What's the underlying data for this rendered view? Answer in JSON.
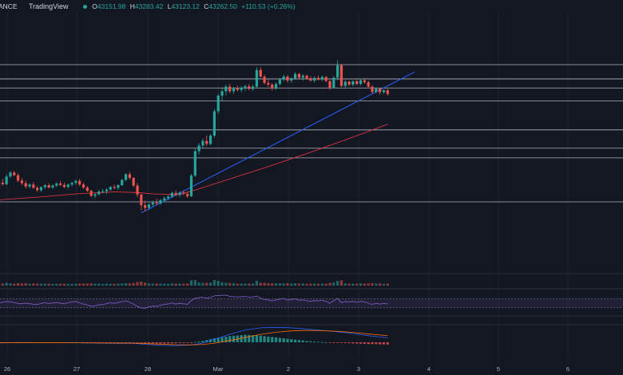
{
  "header": {
    "symbol": "ANCE",
    "brand": "TradingView",
    "ohlc": [
      {
        "label": "O",
        "value": "43151.98"
      },
      {
        "label": "H",
        "value": "43283.42"
      },
      {
        "label": "L",
        "value": "43123.12"
      },
      {
        "label": "C",
        "value": "43262.50"
      }
    ],
    "change": "+110.53 (+0.26%)"
  },
  "chart_data": {
    "type": "line",
    "panes": [
      "price",
      "volume",
      "rsi",
      "macd"
    ],
    "x_ticks": [
      "26",
      "27",
      "28",
      "Mar",
      "2",
      "3",
      "4",
      "5",
      "6"
    ],
    "candles": [
      [
        40060,
        40300,
        39980,
        40240
      ],
      [
        40240,
        40350,
        40150,
        40190
      ],
      [
        40190,
        40480,
        40160,
        40420
      ],
      [
        40420,
        40590,
        40370,
        40540
      ],
      [
        40540,
        40600,
        40430,
        40460
      ],
      [
        40460,
        40520,
        40250,
        40300
      ],
      [
        40300,
        40380,
        40170,
        40220
      ],
      [
        40220,
        40300,
        40060,
        40120
      ],
      [
        40120,
        40220,
        40060,
        40180
      ],
      [
        40180,
        40260,
        40050,
        40080
      ],
      [
        40080,
        40140,
        39950,
        40010
      ],
      [
        40010,
        40130,
        39960,
        40100
      ],
      [
        40100,
        40200,
        40040,
        40160
      ],
      [
        40160,
        40220,
        40060,
        40090
      ],
      [
        40090,
        40180,
        40040,
        40150
      ],
      [
        40150,
        40250,
        40100,
        40210
      ],
      [
        40210,
        40290,
        40130,
        40170
      ],
      [
        40170,
        40240,
        40070,
        40110
      ],
      [
        40110,
        40210,
        40060,
        40180
      ],
      [
        40180,
        40270,
        40120,
        40230
      ],
      [
        40230,
        40330,
        40170,
        40290
      ],
      [
        40290,
        40350,
        40140,
        40180
      ],
      [
        40180,
        40240,
        40050,
        40090
      ],
      [
        40090,
        40140,
        39960,
        39990
      ],
      [
        39990,
        40030,
        39800,
        39840
      ],
      [
        39840,
        39930,
        39770,
        39890
      ],
      [
        39890,
        40020,
        39840,
        39970
      ],
      [
        39970,
        40050,
        39920,
        39980
      ],
      [
        39980,
        40070,
        39900,
        40030
      ],
      [
        40030,
        40130,
        39990,
        40110
      ],
      [
        40110,
        40180,
        40030,
        40080
      ],
      [
        40080,
        40190,
        40020,
        40160
      ],
      [
        40160,
        40350,
        40140,
        40320
      ],
      [
        40320,
        40520,
        40280,
        40490
      ],
      [
        40490,
        40560,
        40330,
        40380
      ],
      [
        40380,
        40400,
        40100,
        40150
      ],
      [
        40150,
        40230,
        39800,
        39880
      ],
      [
        39880,
        39900,
        39410,
        39560
      ],
      [
        39560,
        39700,
        39370,
        39480
      ],
      [
        39480,
        39630,
        39420,
        39580
      ],
      [
        39580,
        39700,
        39520,
        39640
      ],
      [
        39640,
        39760,
        39560,
        39610
      ],
      [
        39610,
        39750,
        39580,
        39710
      ],
      [
        39710,
        39820,
        39650,
        39770
      ],
      [
        39770,
        39860,
        39710,
        39820
      ],
      [
        39820,
        39970,
        39780,
        39930
      ],
      [
        39930,
        40010,
        39820,
        39870
      ],
      [
        39870,
        39980,
        39800,
        39940
      ],
      [
        39940,
        40010,
        39860,
        39900
      ],
      [
        39900,
        39980,
        39780,
        39830
      ],
      [
        39830,
        40500,
        39810,
        40450
      ],
      [
        40450,
        41250,
        40400,
        41180
      ],
      [
        41180,
        41420,
        41080,
        41350
      ],
      [
        41350,
        41560,
        41280,
        41490
      ],
      [
        41490,
        41650,
        41330,
        41400
      ],
      [
        41400,
        41700,
        41360,
        41650
      ],
      [
        41650,
        42450,
        41580,
        42380
      ],
      [
        42380,
        42900,
        42300,
        42850
      ],
      [
        42850,
        43100,
        42700,
        42980
      ],
      [
        42980,
        43180,
        42860,
        43120
      ],
      [
        43120,
        43200,
        42920,
        42980
      ],
      [
        42980,
        43110,
        42900,
        43060
      ],
      [
        43060,
        43150,
        42980,
        43020
      ],
      [
        43020,
        43130,
        42950,
        43090
      ],
      [
        43090,
        43180,
        42990,
        43130
      ],
      [
        43130,
        43200,
        43010,
        43050
      ],
      [
        43050,
        43180,
        42990,
        43120
      ],
      [
        43120,
        43700,
        43080,
        43620
      ],
      [
        43620,
        43700,
        43380,
        43420
      ],
      [
        43420,
        43480,
        43180,
        43230
      ],
      [
        43230,
        43330,
        43110,
        43180
      ],
      [
        43180,
        43230,
        43000,
        43060
      ],
      [
        43060,
        43250,
        43020,
        43200
      ],
      [
        43200,
        43380,
        43150,
        43330
      ],
      [
        43330,
        43480,
        43280,
        43420
      ],
      [
        43420,
        43470,
        43240,
        43300
      ],
      [
        43300,
        43410,
        43230,
        43370
      ],
      [
        43370,
        43560,
        43320,
        43500
      ],
      [
        43500,
        43530,
        43330,
        43390
      ],
      [
        43390,
        43500,
        43300,
        43450
      ],
      [
        43450,
        43480,
        43330,
        43370
      ],
      [
        43370,
        43440,
        43270,
        43300
      ],
      [
        43300,
        43430,
        43240,
        43380
      ],
      [
        43380,
        43460,
        43300,
        43330
      ],
      [
        43330,
        43450,
        43280,
        43410
      ],
      [
        43410,
        43430,
        43250,
        43290
      ],
      [
        43290,
        43310,
        43020,
        43080
      ],
      [
        43080,
        43430,
        43060,
        43390
      ],
      [
        43390,
        43910,
        43300,
        43760
      ],
      [
        43760,
        43800,
        43110,
        43140
      ],
      [
        43140,
        43320,
        43090,
        43270
      ],
      [
        43270,
        43300,
        43130,
        43180
      ],
      [
        43180,
        43310,
        43130,
        43280
      ],
      [
        43280,
        43330,
        43160,
        43200
      ],
      [
        43200,
        43360,
        43150,
        43310
      ],
      [
        43310,
        43380,
        43200,
        43250
      ],
      [
        43250,
        43300,
        43080,
        43120
      ],
      [
        43120,
        43160,
        42900,
        42960
      ],
      [
        42960,
        43100,
        42920,
        43060
      ],
      [
        43060,
        43080,
        42880,
        42950
      ],
      [
        42950,
        43040,
        42900,
        43010
      ],
      [
        43010,
        43050,
        42850,
        42900
      ]
    ],
    "horizontal_levels": [
      43780,
      43350,
      43080,
      42690,
      41820,
      41270,
      40980,
      39660
    ],
    "trendline": {
      "start": {
        "x": 37,
        "y": 39330
      },
      "end": {
        "x": 108,
        "y": 43560
      }
    },
    "moving_average": [
      [
        0,
        39720
      ],
      [
        10,
        39800
      ],
      [
        20,
        39900
      ],
      [
        30,
        39960
      ],
      [
        36,
        39940
      ],
      [
        40,
        39900
      ],
      [
        47,
        39880
      ],
      [
        52,
        40050
      ],
      [
        60,
        40350
      ],
      [
        70,
        40720
      ],
      [
        80,
        41110
      ],
      [
        90,
        41520
      ],
      [
        101,
        41990
      ]
    ],
    "rsi": [
      52,
      54,
      58,
      56,
      53,
      49,
      47,
      50,
      48,
      45,
      44,
      49,
      52,
      48,
      51,
      53,
      50,
      47,
      52,
      55,
      58,
      51,
      46,
      42,
      36,
      38,
      43,
      44,
      48,
      52,
      49,
      53,
      57,
      60,
      54,
      46,
      36,
      29,
      27,
      34,
      37,
      36,
      41,
      45,
      47,
      51,
      46,
      50,
      47,
      45,
      62,
      72,
      75,
      77,
      73,
      76,
      83,
      84,
      85,
      86,
      80,
      79,
      78,
      79,
      80,
      77,
      78,
      82,
      73,
      66,
      65,
      60,
      64,
      68,
      71,
      64,
      66,
      70,
      63,
      65,
      61,
      58,
      62,
      60,
      63,
      58,
      49,
      61,
      71,
      52,
      58,
      55,
      58,
      54,
      58,
      55,
      50,
      45,
      49,
      46,
      49,
      47
    ],
    "rsi_levels": [
      70,
      30
    ],
    "macd": [
      [
        0,
        -15
      ],
      [
        5,
        -5
      ],
      [
        10,
        -8
      ],
      [
        15,
        -12
      ],
      [
        20,
        -10
      ],
      [
        25,
        -18
      ],
      [
        30,
        -25
      ],
      [
        35,
        -22
      ],
      [
        38,
        -45
      ],
      [
        42,
        -70
      ],
      [
        46,
        -75
      ],
      [
        50,
        -60
      ],
      [
        53,
        -20
      ],
      [
        56,
        70
      ],
      [
        60,
        180
      ],
      [
        64,
        280
      ],
      [
        68,
        330
      ],
      [
        72,
        340
      ],
      [
        76,
        330
      ],
      [
        80,
        300
      ],
      [
        84,
        270
      ],
      [
        88,
        240
      ],
      [
        92,
        200
      ],
      [
        96,
        150
      ],
      [
        101,
        100
      ]
    ],
    "signal": [
      [
        0,
        -10
      ],
      [
        5,
        -8
      ],
      [
        10,
        -8
      ],
      [
        15,
        -10
      ],
      [
        20,
        -12
      ],
      [
        25,
        -14
      ],
      [
        30,
        -18
      ],
      [
        35,
        -20
      ],
      [
        38,
        -28
      ],
      [
        42,
        -42
      ],
      [
        46,
        -55
      ],
      [
        50,
        -58
      ],
      [
        53,
        -50
      ],
      [
        56,
        -20
      ],
      [
        60,
        40
      ],
      [
        64,
        110
      ],
      [
        68,
        180
      ],
      [
        72,
        230
      ],
      [
        76,
        260
      ],
      [
        80,
        270
      ],
      [
        84,
        265
      ],
      [
        88,
        250
      ],
      [
        92,
        225
      ],
      [
        96,
        190
      ],
      [
        101,
        150
      ]
    ],
    "colors": {
      "up": "#26a69a",
      "down": "#ef5350",
      "level": "#b2b5be",
      "trendline": "#2962ff",
      "ma": "#f23645",
      "rsi": "#7e57c2",
      "macd": "#2962ff",
      "signal": "#ff6d00",
      "grid": "#1e222d",
      "separator": "#2a2e39"
    }
  }
}
